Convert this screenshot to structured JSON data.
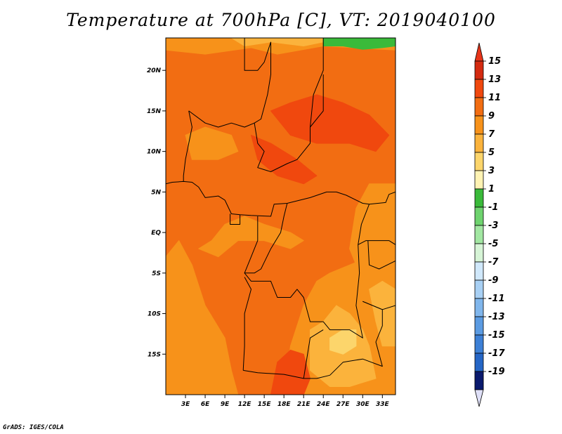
{
  "title": "Temperature at 700hPa [C], VT: 2019040100",
  "credit": "GrADS: IGES/COLA",
  "chart_data": {
    "type": "heatmap",
    "title": "Temperature at 700hPa [C], VT: 2019040100",
    "variable": "Temperature at 700hPa",
    "units": "C",
    "valid_time": "2019040100",
    "lon_range": [
      0,
      35
    ],
    "lat_range": [
      -20,
      24
    ],
    "x_ticks": [
      {
        "value": 3,
        "label": "3E"
      },
      {
        "value": 6,
        "label": "6E"
      },
      {
        "value": 9,
        "label": "9E"
      },
      {
        "value": 12,
        "label": "12E"
      },
      {
        "value": 15,
        "label": "15E"
      },
      {
        "value": 18,
        "label": "18E"
      },
      {
        "value": 21,
        "label": "21E"
      },
      {
        "value": 24,
        "label": "24E"
      },
      {
        "value": 27,
        "label": "27E"
      },
      {
        "value": 30,
        "label": "30E"
      },
      {
        "value": 33,
        "label": "33E"
      }
    ],
    "y_ticks": [
      {
        "value": 20,
        "label": "20N"
      },
      {
        "value": 15,
        "label": "15N"
      },
      {
        "value": 10,
        "label": "10N"
      },
      {
        "value": 5,
        "label": "5N"
      },
      {
        "value": 0,
        "label": "EQ"
      },
      {
        "value": -5,
        "label": "5S"
      },
      {
        "value": -10,
        "label": "10S"
      },
      {
        "value": -15,
        "label": "15S"
      }
    ],
    "colorbar": {
      "levels": [
        {
          "label": "15",
          "color": "#d42a10"
        },
        {
          "label": "13",
          "color": "#f0480e"
        },
        {
          "label": "11",
          "color": "#f26d12"
        },
        {
          "label": "9",
          "color": "#f7921a"
        },
        {
          "label": "7",
          "color": "#fbb33c"
        },
        {
          "label": "5",
          "color": "#fcd56b"
        },
        {
          "label": "3",
          "color": "#fff3b3"
        },
        {
          "label": "1",
          "color": "#3aba3a"
        },
        {
          "label": "-1",
          "color": "#6ed36e"
        },
        {
          "label": "-3",
          "color": "#a2e7a2"
        },
        {
          "label": "-5",
          "color": "#d6f4d6"
        },
        {
          "label": "-7",
          "color": "#d0e8fb"
        },
        {
          "label": "-9",
          "color": "#a8d0f4"
        },
        {
          "label": "-11",
          "color": "#80b6ec"
        },
        {
          "label": "-13",
          "color": "#5b9be2"
        },
        {
          "label": "-15",
          "color": "#3d80d6"
        },
        {
          "label": "-17",
          "color": "#2566c6"
        },
        {
          "label": "-19",
          "color": "#154aa8"
        }
      ],
      "top_cap_color": "#e8351a",
      "bottom_cap_color": "#dfe0f8",
      "bottom_segment_color": "#0a1a6e"
    },
    "colors": {
      "background_field": "#f26d12",
      "warm_core": "#f0480e",
      "cool_area": "#f7921a",
      "cold_area": "#fbb33c",
      "very_cold_area": "#fcd56b",
      "northern_green": "#3aba3a"
    }
  }
}
